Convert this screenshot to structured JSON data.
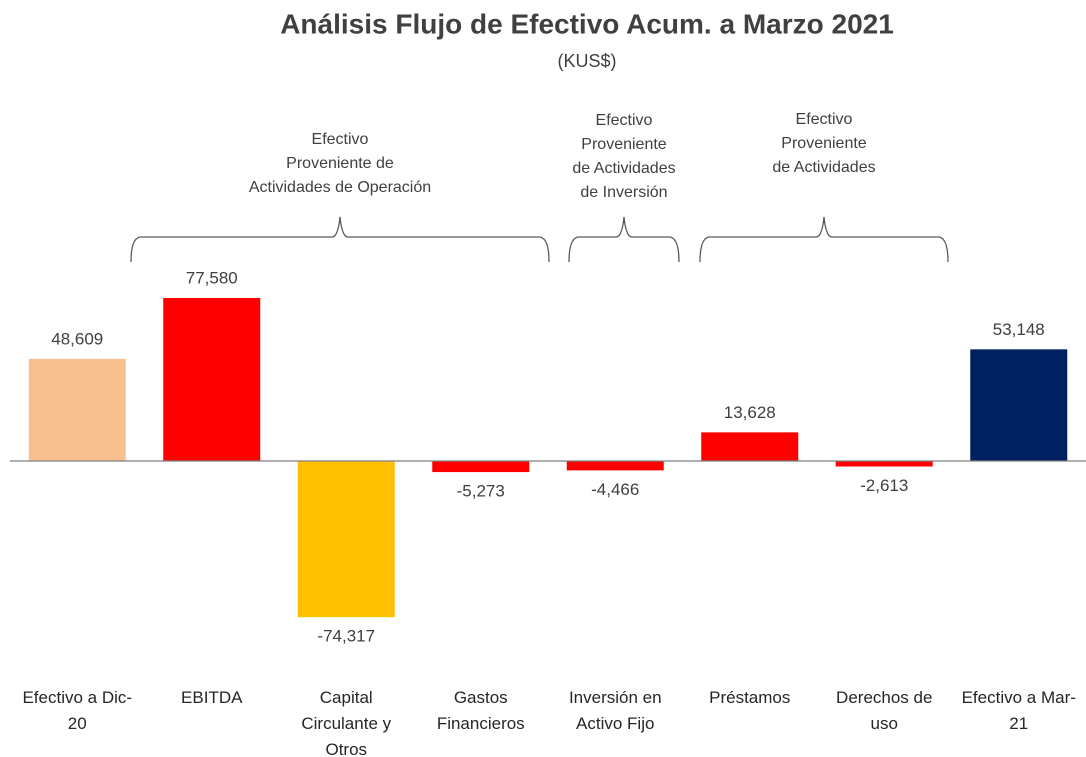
{
  "chart_data": {
    "type": "bar",
    "title": "Análisis Flujo de Efectivo Acum. a Marzo 2021",
    "subtitle": "(KUS$)",
    "categories": [
      "Efectivo a Dic-20",
      "EBITDA",
      "Capital Circulante y Otros",
      "Gastos Financieros",
      "Inversión en Activo Fijo",
      "Préstamos",
      "Derechos de uso",
      "Efectivo a Mar-21"
    ],
    "values": [
      48609,
      77580,
      -74317,
      -5273,
      -4466,
      13628,
      -2613,
      53148
    ],
    "value_labels": [
      "48,609",
      "77,580",
      "-74,317",
      "-5,273",
      "-4,466",
      "13,628",
      "-2,613",
      "53,148"
    ],
    "colors": [
      "#f8c08f",
      "#ff0000",
      "#ffc000",
      "#ff0000",
      "#ff0000",
      "#ff0000",
      "#ff0000",
      "#002060"
    ],
    "annotations": [
      {
        "lines": [
          "Efectivo",
          "Proveniente de",
          "Actividades de Operación"
        ]
      },
      {
        "lines": [
          "Efectivo",
          "Proveniente",
          "de Actividades",
          "de Inversión"
        ]
      },
      {
        "lines": [
          "Efectivo",
          "Proveniente",
          "de Actividades"
        ]
      }
    ]
  }
}
